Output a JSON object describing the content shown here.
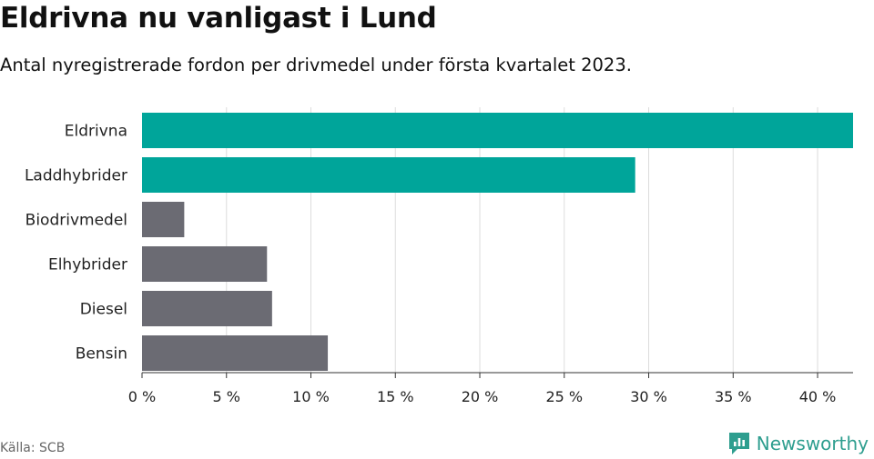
{
  "title": "Eldrivna nu vanligast i Lund",
  "subtitle": "Antal nyregistrerade fordon per drivmedel under första kvartalet 2023.",
  "source": "Källa: SCB",
  "brand": {
    "name": "Newsworthy",
    "icon": "newsworthy-logo-icon",
    "color": "#2e9e8f"
  },
  "chart_data": {
    "type": "bar",
    "orientation": "horizontal",
    "categories": [
      "Eldrivna",
      "Laddhybrider",
      "Biodrivmedel",
      "Elhybrider",
      "Diesel",
      "Bensin"
    ],
    "values": [
      42.1,
      29.2,
      2.5,
      7.4,
      7.7,
      11.0
    ],
    "colors": [
      "#00a59a",
      "#00a59a",
      "#6b6b73",
      "#6b6b73",
      "#6b6b73",
      "#6b6b73"
    ],
    "xlim": [
      0,
      42.1
    ],
    "xticks": [
      0,
      5,
      10,
      15,
      20,
      25,
      30,
      35,
      40
    ],
    "xtick_labels": [
      "0 %",
      "5 %",
      "10 %",
      "15 %",
      "20 %",
      "25 %",
      "30 %",
      "35 %",
      "40 %"
    ],
    "grid": true,
    "gridline_color": "#dcdcdc"
  }
}
